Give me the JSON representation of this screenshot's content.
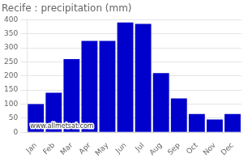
{
  "chart_data": {
    "type": "bar",
    "title": "Recife : precipitation (mm)",
    "categories": [
      "Jan",
      "Feb",
      "Mar",
      "Apr",
      "May",
      "Jun",
      "Jul",
      "Aug",
      "Sep",
      "Oct",
      "Nov",
      "Dec"
    ],
    "values": [
      100,
      140,
      260,
      325,
      325,
      390,
      385,
      210,
      120,
      65,
      45,
      65
    ],
    "color": "#0000CC",
    "ylim": [
      0,
      400
    ],
    "yticks": [
      0,
      50,
      100,
      150,
      200,
      250,
      300,
      350,
      400
    ],
    "grid": true,
    "annotations": [
      "www.allmetsat.com"
    ]
  }
}
